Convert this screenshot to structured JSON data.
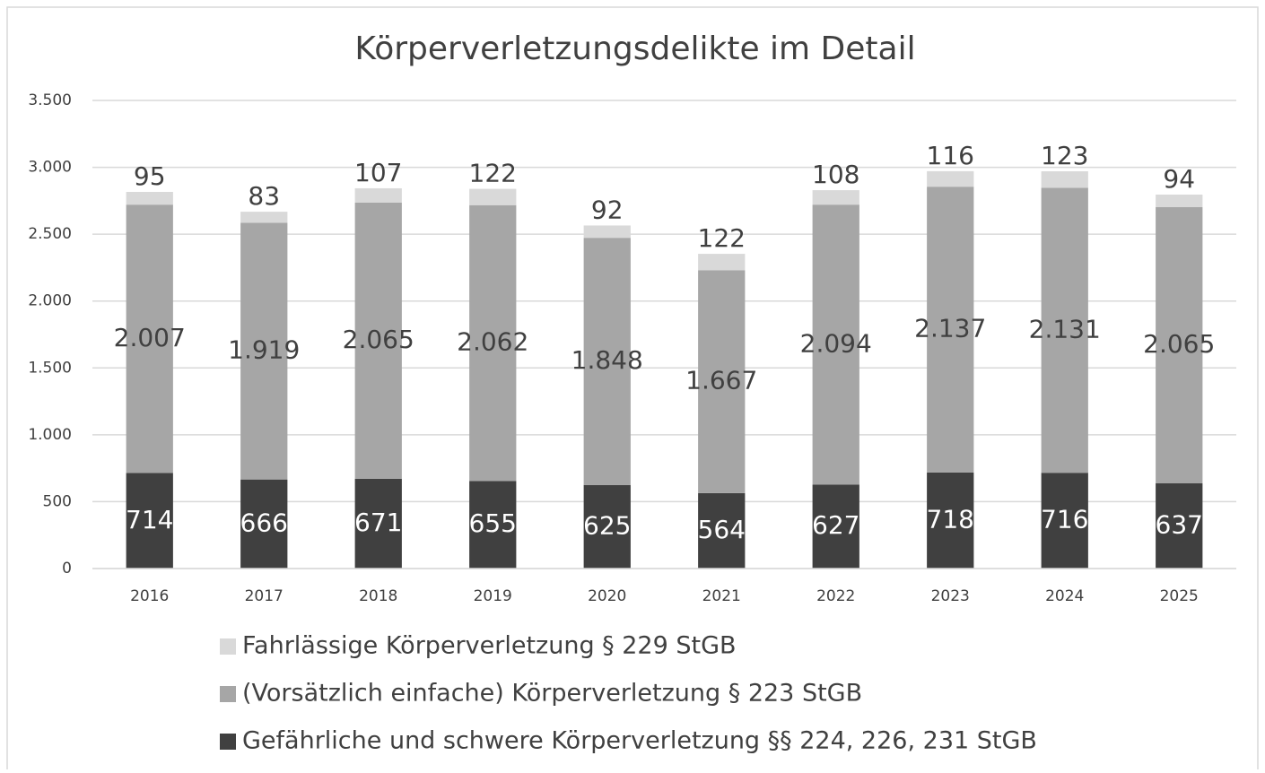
{
  "chart_data": {
    "type": "stacked_bar",
    "title": "Körperverletzungsdelikte im Detail",
    "categories": [
      "2016",
      "2017",
      "2018",
      "2019",
      "2020",
      "2021",
      "2022",
      "2023",
      "2024",
      "2025"
    ],
    "series": [
      {
        "name": "Gefährliche und schwere Körperverletzung §§ 224, 226, 231 StGB",
        "color": "#404040",
        "values": [
          714,
          666,
          671,
          655,
          625,
          564,
          627,
          718,
          716,
          637
        ]
      },
      {
        "name": "(Vorsätzlich einfache) Körperverletzung § 223 StGB",
        "color": "#a6a6a6",
        "values": [
          2007,
          1919,
          2065,
          2062,
          1848,
          1667,
          2094,
          2137,
          2131,
          2065
        ],
        "value_labels": [
          "2.007",
          "1.919",
          "2.065",
          "2.062",
          "1.848",
          "1.667",
          "2.094",
          "2.137",
          "2.131",
          "2.065"
        ]
      },
      {
        "name": "Fahrlässige Körperverletzung § 229 StGB",
        "color": "#d9d9d9",
        "values": [
          95,
          83,
          107,
          122,
          92,
          122,
          108,
          116,
          123,
          94
        ]
      }
    ],
    "ylim": [
      0,
      3500
    ],
    "yticks": [
      0,
      500,
      {
        "value": 1000,
        "label": "1.000"
      },
      {
        "value": 1500,
        "label": "1.500"
      },
      {
        "value": 2000,
        "label": "2.000"
      },
      {
        "value": 2500,
        "label": "2.500"
      },
      {
        "value": 3000,
        "label": "3.000"
      },
      {
        "value": 3500,
        "label": "3.500"
      }
    ],
    "grid": true,
    "legend": "bottom"
  }
}
